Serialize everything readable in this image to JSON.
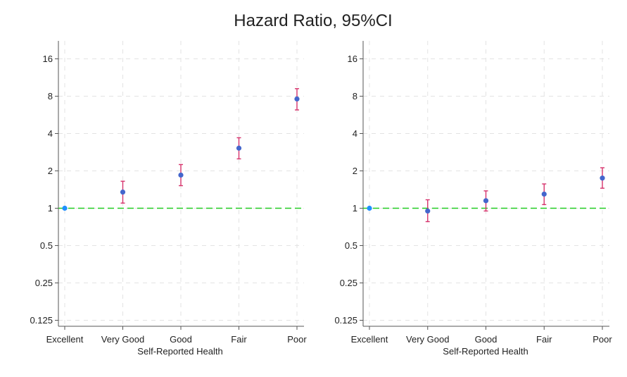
{
  "chart_data": {
    "title": "Hazard Ratio, 95%CI",
    "type": "scatter",
    "y_scale": "log2",
    "ylim": [
      0.115,
      21
    ],
    "y_ticks": [
      {
        "value": 0.125,
        "label": "0.125"
      },
      {
        "value": 0.25,
        "label": "0.25"
      },
      {
        "value": 0.5,
        "label": "0.5"
      },
      {
        "value": 1,
        "label": "1"
      },
      {
        "value": 2,
        "label": "2"
      },
      {
        "value": 4,
        "label": "4"
      },
      {
        "value": 8,
        "label": "8"
      },
      {
        "value": 16,
        "label": "16"
      }
    ],
    "grid": true,
    "reference_line": {
      "value": 1,
      "color": "#22cc22",
      "style": "dashed"
    },
    "colors": {
      "point": "#4466cc",
      "reference_point": "#1e90ff",
      "error_bar": "#d6336c",
      "grid": "#e3e3e3",
      "axis": "#555555"
    },
    "panels": [
      {
        "xlabel": "Self-Reported Health",
        "categories": [
          "Excellent",
          "Very Good",
          "Good",
          "Fair",
          "Poor"
        ],
        "estimates": [
          1,
          1.35,
          1.85,
          3.05,
          7.6
        ],
        "ci_low": [
          null,
          1.1,
          1.52,
          2.5,
          6.2
        ],
        "ci_high": [
          null,
          1.65,
          2.25,
          3.7,
          9.2
        ]
      },
      {
        "xlabel": "Self-Reported Health",
        "categories": [
          "Excellent",
          "Very Good",
          "Good",
          "Fair",
          "Poor"
        ],
        "estimates": [
          1,
          0.95,
          1.15,
          1.3,
          1.75
        ],
        "ci_low": [
          null,
          0.78,
          0.95,
          1.07,
          1.45
        ],
        "ci_high": [
          null,
          1.17,
          1.38,
          1.57,
          2.12
        ]
      }
    ]
  }
}
